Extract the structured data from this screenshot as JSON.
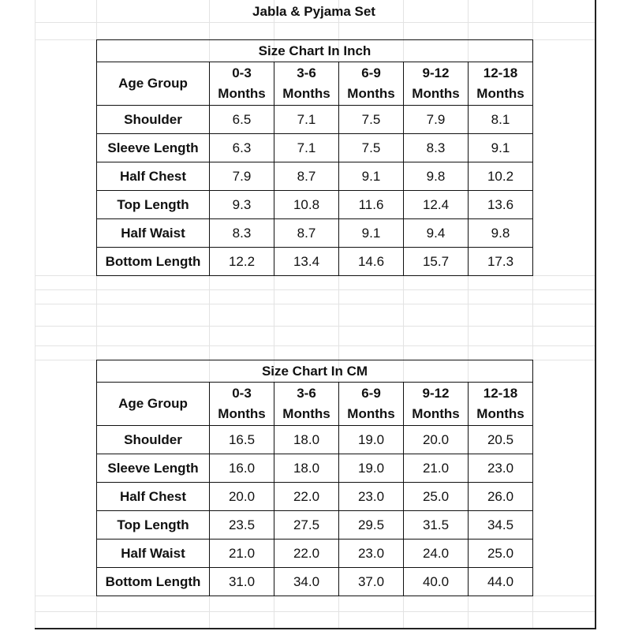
{
  "title": "Jabla & Pyjama Set",
  "tables": [
    {
      "title": "Size Chart In Inch",
      "header": [
        "Age Group",
        "0-3 Months",
        "3-6 Months",
        "6-9 Months",
        "9-12 Months",
        "12-18 Months"
      ],
      "rows": [
        [
          "Shoulder",
          "6.5",
          "7.1",
          "7.5",
          "7.9",
          "8.1"
        ],
        [
          "Sleeve Length",
          "6.3",
          "7.1",
          "7.5",
          "8.3",
          "9.1"
        ],
        [
          "Half Chest",
          "7.9",
          "8.7",
          "9.1",
          "9.8",
          "10.2"
        ],
        [
          "Top Length",
          "9.3",
          "10.8",
          "11.6",
          "12.4",
          "13.6"
        ],
        [
          "Half Waist",
          "8.3",
          "8.7",
          "9.1",
          "9.4",
          "9.8"
        ],
        [
          "Bottom Length",
          "12.2",
          "13.4",
          "14.6",
          "15.7",
          "17.3"
        ]
      ]
    },
    {
      "title": "Size Chart In CM",
      "header": [
        "Age Group",
        "0-3 Months",
        "3-6 Months",
        "6-9 Months",
        "9-12 Months",
        "12-18 Months"
      ],
      "rows": [
        [
          "Shoulder",
          "16.5",
          "18.0",
          "19.0",
          "20.0",
          "20.5"
        ],
        [
          "Sleeve Length",
          "16.0",
          "18.0",
          "19.0",
          "21.0",
          "23.0"
        ],
        [
          "Half Chest",
          "20.0",
          "22.0",
          "23.0",
          "25.0",
          "26.0"
        ],
        [
          "Top Length",
          "23.5",
          "27.5",
          "29.5",
          "31.5",
          "34.5"
        ],
        [
          "Half Waist",
          "21.0",
          "22.0",
          "23.0",
          "24.0",
          "25.0"
        ],
        [
          "Bottom Length",
          "31.0",
          "34.0",
          "37.0",
          "40.0",
          "44.0"
        ]
      ]
    }
  ]
}
